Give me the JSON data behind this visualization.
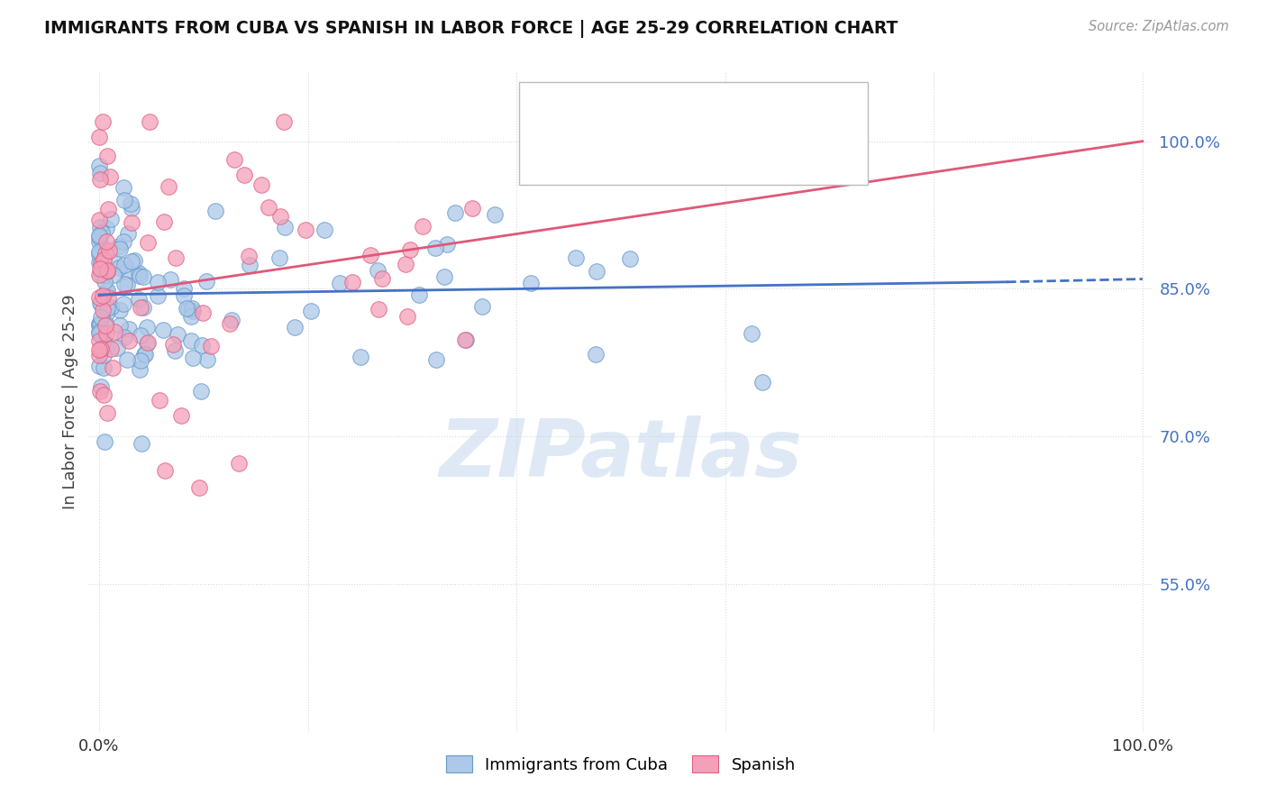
{
  "title": "IMMIGRANTS FROM CUBA VS SPANISH IN LABOR FORCE | AGE 25-29 CORRELATION CHART",
  "source": "Source: ZipAtlas.com",
  "ylabel": "In Labor Force | Age 25-29",
  "watermark": "ZIPatlas",
  "legend_blue_label": "Immigrants from Cuba",
  "legend_pink_label": "Spanish",
  "yticks": [
    0.55,
    0.7,
    0.85,
    1.0
  ],
  "ytick_labels": [
    "55.0%",
    "70.0%",
    "85.0%",
    "100.0%"
  ],
  "xlim": [
    -0.01,
    1.01
  ],
  "ylim": [
    0.4,
    1.07
  ],
  "blue_color": "#adc8e8",
  "blue_edge": "#6699cc",
  "pink_color": "#f5a0ba",
  "pink_edge": "#e06080",
  "trend_blue": "#4472c4",
  "trend_pink": "#e05878",
  "background_color": "#ffffff",
  "grid_color": "#d8d8d8",
  "blue_seed": 7,
  "pink_seed": 13
}
